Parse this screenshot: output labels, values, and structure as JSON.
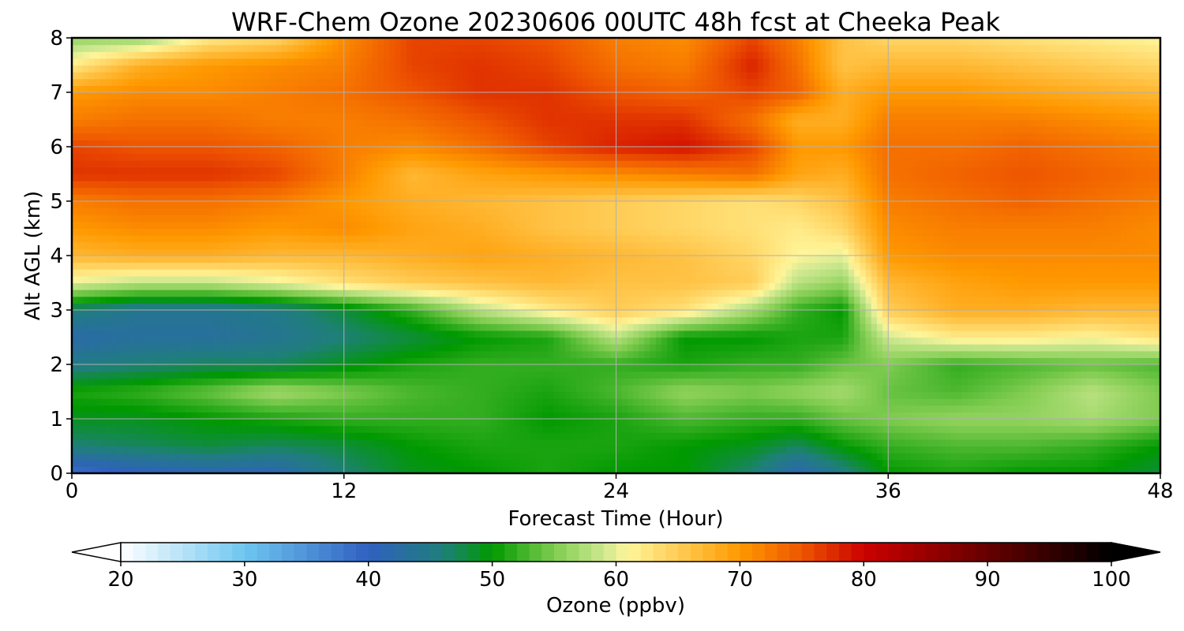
{
  "chart_data": {
    "type": "heatmap",
    "title": "WRF-Chem Ozone  20230606 00UTC 48h fcst at Cheeka Peak",
    "xlabel": "Forecast Time (Hour)",
    "ylabel": "Alt AGL (km)",
    "xlim": [
      0,
      48
    ],
    "ylim": [
      0,
      8
    ],
    "x_ticks": [
      0,
      12,
      24,
      36,
      48
    ],
    "y_ticks": [
      0,
      1,
      2,
      3,
      4,
      5,
      6,
      7,
      8
    ],
    "grid": true,
    "colorbar": {
      "label": "Ozone  (ppbv)",
      "range": [
        20,
        100
      ],
      "ticks": [
        20,
        30,
        40,
        50,
        60,
        70,
        80,
        90,
        100
      ],
      "extend": "both",
      "colors": [
        {
          "v": 20,
          "c": "#ffffff"
        },
        {
          "v": 30,
          "c": "#6ec6f0"
        },
        {
          "v": 40,
          "c": "#3060c0"
        },
        {
          "v": 46,
          "c": "#1f7f7a"
        },
        {
          "v": 50,
          "c": "#009900"
        },
        {
          "v": 55,
          "c": "#80cc50"
        },
        {
          "v": 59,
          "c": "#cde890"
        },
        {
          "v": 61,
          "c": "#fff59a"
        },
        {
          "v": 65,
          "c": "#ffcc55"
        },
        {
          "v": 70,
          "c": "#ff9900"
        },
        {
          "v": 75,
          "c": "#ee5500"
        },
        {
          "v": 80,
          "c": "#cc0000"
        },
        {
          "v": 90,
          "c": "#660000"
        },
        {
          "v": 100,
          "c": "#000000"
        }
      ]
    },
    "x_hours": [
      0,
      3,
      6,
      9,
      12,
      15,
      18,
      21,
      24,
      27,
      30,
      32,
      34,
      36,
      39,
      42,
      45,
      48
    ],
    "y_km": [
      0,
      0.5,
      1,
      1.5,
      2,
      2.5,
      3,
      3.5,
      4,
      4.5,
      5,
      5.5,
      6,
      6.5,
      7,
      7.5,
      8
    ],
    "values": [
      [
        38,
        40,
        41,
        41,
        46,
        49,
        50,
        51,
        50,
        50,
        46,
        41,
        45,
        50,
        51,
        50,
        50,
        48
      ],
      [
        46,
        47,
        48,
        47,
        48,
        50,
        51,
        51,
        51,
        50,
        49,
        47,
        50,
        52,
        53,
        53,
        52,
        50
      ],
      [
        49,
        49,
        50,
        51,
        52,
        52,
        52,
        50,
        51,
        53,
        52,
        52,
        54,
        55,
        56,
        56,
        57,
        55
      ],
      [
        51,
        52,
        54,
        57,
        55,
        53,
        52,
        51,
        53,
        56,
        55,
        56,
        57,
        54,
        53,
        55,
        58,
        55
      ],
      [
        45,
        46,
        47,
        47,
        49,
        51,
        52,
        52,
        52,
        51,
        52,
        52,
        54,
        55,
        52,
        53,
        54,
        53
      ],
      [
        42,
        43,
        43,
        44,
        46,
        48,
        50,
        51,
        58,
        50,
        50,
        51,
        51,
        59,
        62,
        62,
        61,
        63
      ],
      [
        46,
        44,
        44,
        45,
        48,
        52,
        58,
        62,
        65,
        63,
        57,
        52,
        50,
        65,
        68,
        68,
        67,
        67
      ],
      [
        60,
        58,
        58,
        60,
        63,
        65,
        66,
        67,
        66,
        66,
        65,
        58,
        56,
        67,
        69,
        70,
        70,
        70
      ],
      [
        67,
        68,
        68,
        67,
        67,
        68,
        69,
        68,
        67,
        66,
        64,
        61,
        60,
        70,
        71,
        71,
        71,
        71
      ],
      [
        70,
        71,
        71,
        70,
        71,
        69,
        68,
        66,
        65,
        64,
        63,
        62,
        64,
        71,
        72,
        72,
        72,
        71
      ],
      [
        72,
        73,
        73,
        72,
        70,
        68,
        67,
        66,
        65,
        64,
        63,
        64,
        66,
        72,
        73,
        74,
        73,
        72
      ],
      [
        77,
        77,
        77,
        76,
        72,
        67,
        69,
        70,
        71,
        72,
        73,
        69,
        68,
        73,
        74,
        75,
        74,
        73
      ],
      [
        76,
        75,
        75,
        74,
        72,
        71,
        73,
        76,
        78,
        79,
        76,
        70,
        70,
        73,
        73,
        74,
        73,
        72
      ],
      [
        72,
        73,
        73,
        72,
        72,
        73,
        75,
        77,
        77,
        77,
        73,
        68,
        68,
        72,
        72,
        72,
        71,
        70
      ],
      [
        70,
        71,
        71,
        72,
        73,
        75,
        77,
        77,
        75,
        74,
        76,
        74,
        68,
        70,
        70,
        69,
        68,
        67
      ],
      [
        62,
        68,
        70,
        71,
        72,
        76,
        77,
        76,
        73,
        72,
        78,
        73,
        66,
        67,
        67,
        66,
        65,
        64
      ],
      [
        56,
        56,
        62,
        64,
        71,
        76,
        76,
        75,
        72,
        71,
        76,
        72,
        66,
        64,
        64,
        63,
        62,
        61
      ]
    ]
  }
}
